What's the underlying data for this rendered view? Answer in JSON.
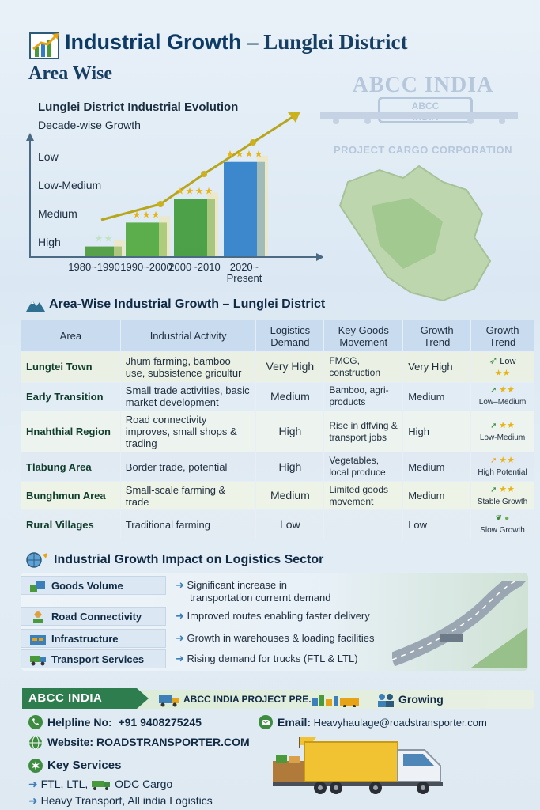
{
  "header": {
    "title_main": "Industrial Growth",
    "title_suffix": "– Lunglei District",
    "subtitle": "Area Wise"
  },
  "watermark": {
    "title": "ABCC INDIA",
    "badge_line1": "ABCC",
    "badge_line2": "INDIA",
    "subtitle": "PROJECT CARGO CORPORATION"
  },
  "chart_data": {
    "type": "bar",
    "title": "Lunglei District Industrial Evolution",
    "subtitle": "Decade-wise Growth",
    "categories": [
      "1980~1990",
      "1990~2000",
      "2000~2010",
      "2020~\nPresent"
    ],
    "category_lines": [
      [
        "1980~1990"
      ],
      [
        "1990~2000"
      ],
      [
        "2000~2010"
      ],
      [
        "2020~",
        "Present"
      ]
    ],
    "values": [
      1,
      2,
      3,
      4
    ],
    "stars": [
      2,
      3,
      4,
      4
    ],
    "y_tick_labels": [
      "Low",
      "Low-Medium",
      "Medium",
      "High"
    ],
    "trend_line": true,
    "colors": [
      "#4a9a3b",
      "#4fa83c",
      "#3f9a3a",
      "#2f7fc8"
    ]
  },
  "area_section": {
    "heading": "Area-Wise Industrial Growth – Lunglei District",
    "columns": [
      "Area",
      "Industrial Activity",
      "Logistics Demand",
      "Key Goods Movement",
      "Growth Trend",
      "Growth Trend"
    ],
    "rows": [
      {
        "area": "Lungtei Town",
        "activity": "Jhum farming, bamboo use, subsistence gricultur",
        "demand": "Very High",
        "goods": "FMCG, construction",
        "trend": "Very High",
        "trend2": "Low",
        "stars": "★★"
      },
      {
        "area": "Early Transition",
        "activity": "Small trade activities, basic market development",
        "demand": "Medium",
        "goods": "Bamboo, agri-products",
        "trend": "Medium",
        "trend2": "Low–Medium",
        "stars": "★★"
      },
      {
        "area": "Hnahthial Region",
        "activity": "Road connectivity improves, small shops & trading",
        "demand": "High",
        "goods": "Rise in dffving & transport jobs",
        "trend": "High",
        "trend2": "Low-Medium",
        "stars": "★★"
      },
      {
        "area": "Tlabung Area",
        "activity": "Border trade, potential",
        "demand": "High",
        "goods": "Vegetables, local produce",
        "trend": "Medium",
        "trend2": "High Potential",
        "stars": "★★"
      },
      {
        "area": "Bunghmun Area",
        "activity": "Small-scale farming & trade",
        "demand": "Medium",
        "goods": "Limited goods movement",
        "trend": "Medium",
        "trend2": "Stable Growth",
        "stars": "★★"
      },
      {
        "area": "Rural Villages",
        "activity": "Traditional farming",
        "demand": "Low",
        "goods": "",
        "trend": "Low",
        "trend2": "Slow Growth",
        "stars": ""
      }
    ]
  },
  "impact_section": {
    "heading": "Industrial Growth Impact on Logistics Sector",
    "rows": [
      {
        "label": "Goods Volume",
        "desc1": "Significant increase in",
        "desc2": "transportation currernt demand"
      },
      {
        "label": "Road Connectivity",
        "desc1": "Improved routes enabling faster delivery",
        "desc2": ""
      },
      {
        "label": "Infrastructure",
        "desc1": "Growth in warehouses & loading facilities",
        "desc2": ""
      },
      {
        "label": "Transport Services",
        "desc1": "Rising demand for trucks (FTL & LTL)",
        "desc2": ""
      }
    ]
  },
  "footer": {
    "tag": "ABCC INDIA",
    "project_label": "ABCC INDIA PROJECT PRE.",
    "growing": "Growing",
    "helpline_label": "Helpline No:",
    "helpline_value": "+91 9408275245",
    "email_label": "Email:",
    "email_value": "Heavyhaulage@roadstransporter.com",
    "website_label": "Website:",
    "website_value": "ROADSTRANSPORTER.COM",
    "services_label": "Key Services",
    "service1": "FTL, LTL,",
    "service1b": "ODC Cargo",
    "service2": "Heavy Transport, All india Logistics"
  }
}
